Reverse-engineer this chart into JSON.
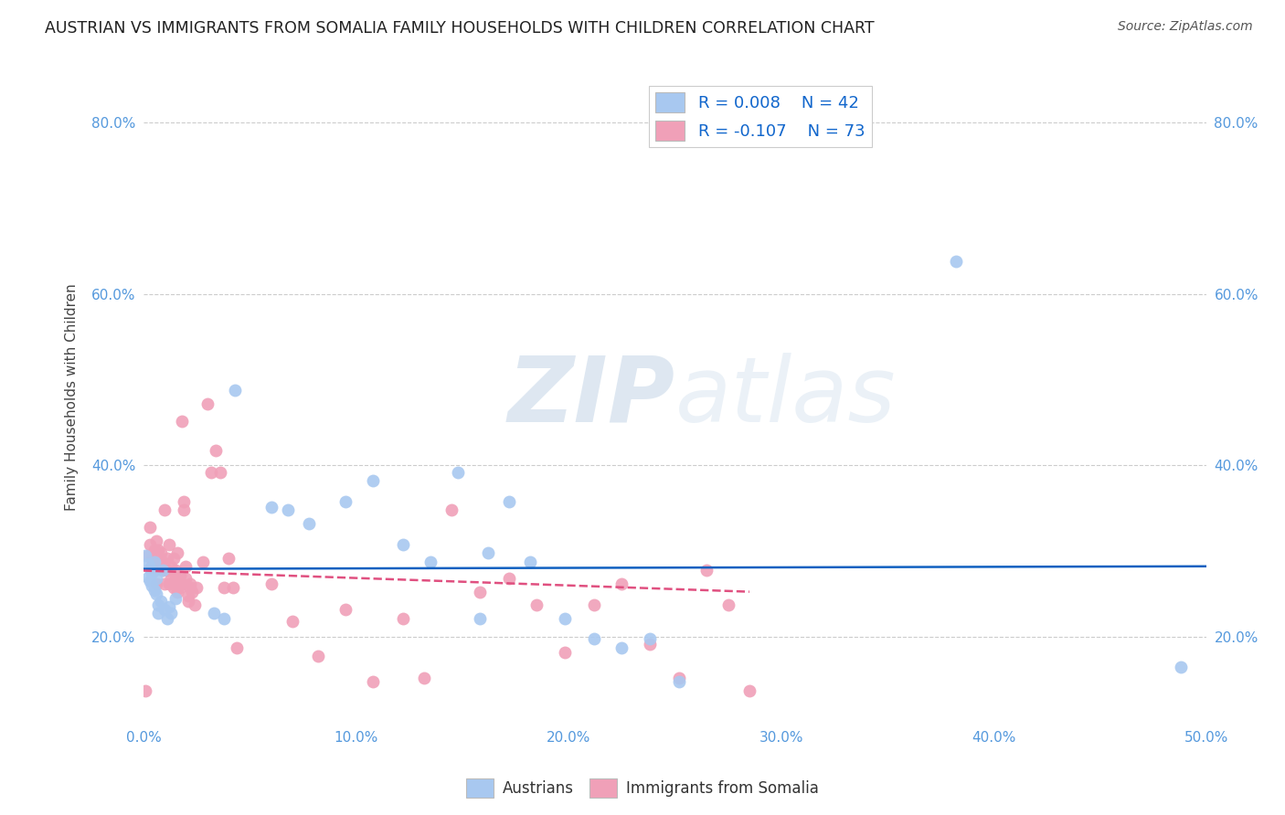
{
  "title": "AUSTRIAN VS IMMIGRANTS FROM SOMALIA FAMILY HOUSEHOLDS WITH CHILDREN CORRELATION CHART",
  "source": "Source: ZipAtlas.com",
  "ylabel": "Family Households with Children",
  "xlabel": "",
  "xlim": [
    0.0,
    0.5
  ],
  "ylim": [
    0.1,
    0.86
  ],
  "yticks": [
    0.2,
    0.4,
    0.6,
    0.8
  ],
  "xticks": [
    0.0,
    0.1,
    0.2,
    0.3,
    0.4,
    0.5
  ],
  "ytick_labels": [
    "20.0%",
    "40.0%",
    "60.0%",
    "80.0%"
  ],
  "xtick_labels": [
    "0.0%",
    "10.0%",
    "20.0%",
    "30.0%",
    "40.0%",
    "50.0%"
  ],
  "blue_color": "#A8C8F0",
  "pink_color": "#F0A0B8",
  "blue_line_color": "#1060C0",
  "pink_line_color": "#E05080",
  "watermark_zip": "ZIP",
  "watermark_atlas": "atlas",
  "legend_blue_R": "0.008",
  "legend_blue_N": "42",
  "legend_pink_R": "-0.107",
  "legend_pink_N": "73",
  "blue_R": 0.008,
  "pink_R": -0.107,
  "austrians_x": [
    0.001,
    0.002,
    0.002,
    0.003,
    0.003,
    0.004,
    0.004,
    0.005,
    0.005,
    0.006,
    0.006,
    0.007,
    0.007,
    0.008,
    0.009,
    0.01,
    0.011,
    0.012,
    0.013,
    0.015,
    0.033,
    0.038,
    0.043,
    0.06,
    0.068,
    0.078,
    0.095,
    0.108,
    0.122,
    0.135,
    0.148,
    0.158,
    0.162,
    0.172,
    0.182,
    0.198,
    0.212,
    0.225,
    0.238,
    0.252,
    0.382,
    0.488
  ],
  "austrians_y": [
    0.295,
    0.285,
    0.27,
    0.28,
    0.265,
    0.275,
    0.26,
    0.288,
    0.255,
    0.268,
    0.25,
    0.238,
    0.228,
    0.242,
    0.278,
    0.232,
    0.222,
    0.235,
    0.228,
    0.245,
    0.228,
    0.222,
    0.488,
    0.352,
    0.348,
    0.332,
    0.358,
    0.382,
    0.308,
    0.288,
    0.392,
    0.222,
    0.298,
    0.358,
    0.288,
    0.222,
    0.198,
    0.188,
    0.198,
    0.148,
    0.638,
    0.165
  ],
  "somalia_x": [
    0.001,
    0.002,
    0.003,
    0.003,
    0.004,
    0.004,
    0.005,
    0.005,
    0.006,
    0.006,
    0.007,
    0.007,
    0.008,
    0.008,
    0.009,
    0.009,
    0.01,
    0.01,
    0.011,
    0.011,
    0.012,
    0.012,
    0.013,
    0.013,
    0.014,
    0.014,
    0.015,
    0.015,
    0.016,
    0.016,
    0.017,
    0.017,
    0.018,
    0.018,
    0.019,
    0.019,
    0.02,
    0.02,
    0.021,
    0.021,
    0.022,
    0.022,
    0.023,
    0.024,
    0.025,
    0.028,
    0.03,
    0.032,
    0.034,
    0.036,
    0.038,
    0.04,
    0.042,
    0.044,
    0.06,
    0.07,
    0.082,
    0.095,
    0.108,
    0.122,
    0.132,
    0.145,
    0.158,
    0.172,
    0.185,
    0.198,
    0.212,
    0.225,
    0.238,
    0.252,
    0.265,
    0.275,
    0.285
  ],
  "somalia_y": [
    0.138,
    0.295,
    0.328,
    0.308,
    0.282,
    0.292,
    0.278,
    0.302,
    0.262,
    0.312,
    0.302,
    0.292,
    0.282,
    0.298,
    0.278,
    0.288,
    0.348,
    0.262,
    0.278,
    0.292,
    0.308,
    0.262,
    0.268,
    0.282,
    0.292,
    0.258,
    0.278,
    0.268,
    0.252,
    0.298,
    0.258,
    0.272,
    0.262,
    0.452,
    0.348,
    0.358,
    0.282,
    0.268,
    0.248,
    0.242,
    0.258,
    0.262,
    0.252,
    0.238,
    0.258,
    0.288,
    0.472,
    0.392,
    0.418,
    0.392,
    0.258,
    0.292,
    0.258,
    0.188,
    0.262,
    0.218,
    0.178,
    0.232,
    0.148,
    0.222,
    0.152,
    0.348,
    0.252,
    0.268,
    0.238,
    0.182,
    0.238,
    0.262,
    0.192,
    0.152,
    0.278,
    0.238,
    0.138
  ]
}
